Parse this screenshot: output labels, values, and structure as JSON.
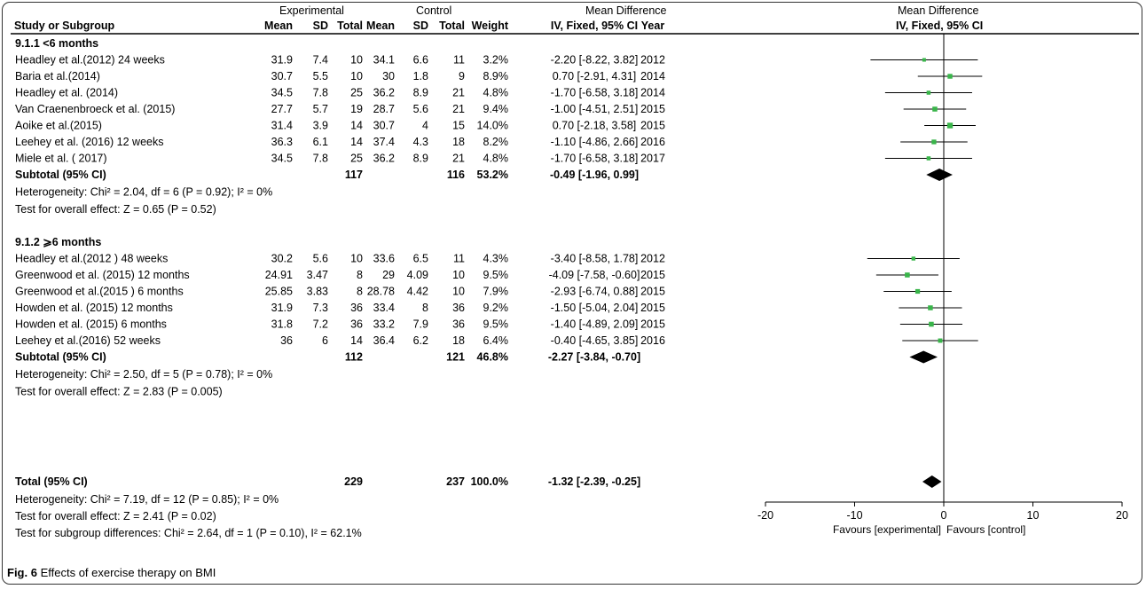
{
  "header": {
    "group_exp": "Experimental",
    "group_ctrl": "Control",
    "group_md": "Mean Difference",
    "group_md_right": "Mean Difference",
    "col_study": "Study or Subgroup",
    "col_mean": "Mean",
    "col_sd": "SD",
    "col_total": "Total",
    "col_weight": "Weight",
    "col_ci": "IV, Fixed, 95% CI",
    "col_year": "Year",
    "col_ci_right": "IV, Fixed, 95% CI"
  },
  "chart_data": {
    "type": "forest",
    "xlim": [
      -20,
      20
    ],
    "ticks": [
      -20,
      -10,
      0,
      10,
      20
    ],
    "tick_labels": [
      "-20",
      "-10",
      "0",
      "10",
      "20"
    ],
    "favours_left": "Favours [experimental]",
    "favours_right": "Favours [control]",
    "subgroups": [
      {
        "title": "9.1.1 <6 months",
        "studies": [
          {
            "name": "Headley et al.(2012)  24 weeks",
            "em": "31.9",
            "esd": "7.4",
            "en": "10",
            "cm": "34.1",
            "csd": "6.6",
            "cn": "11",
            "w": "3.2%",
            "ci": "-2.20 [-8.22, 3.82]",
            "year": "2012",
            "md": -2.2,
            "lo": -8.22,
            "hi": 3.82,
            "weight": 3.2
          },
          {
            "name": "Baria et al.(2014)",
            "em": "30.7",
            "esd": "5.5",
            "en": "10",
            "cm": "30",
            "csd": "1.8",
            "cn": "9",
            "w": "8.9%",
            "ci": "0.70 [-2.91, 4.31]",
            "year": "2014",
            "md": 0.7,
            "lo": -2.91,
            "hi": 4.31,
            "weight": 8.9
          },
          {
            "name": "Headley et al. (2014)",
            "em": "34.5",
            "esd": "7.8",
            "en": "25",
            "cm": "36.2",
            "csd": "8.9",
            "cn": "21",
            "w": "4.8%",
            "ci": "-1.70 [-6.58, 3.18]",
            "year": "2014",
            "md": -1.7,
            "lo": -6.58,
            "hi": 3.18,
            "weight": 4.8
          },
          {
            "name": "Van Craenenbroeck et al. (2015)",
            "em": "27.7",
            "esd": "5.7",
            "en": "19",
            "cm": "28.7",
            "csd": "5.6",
            "cn": "21",
            "w": "9.4%",
            "ci": "-1.00 [-4.51, 2.51]",
            "year": "2015",
            "md": -1.0,
            "lo": -4.51,
            "hi": 2.51,
            "weight": 9.4
          },
          {
            "name": "Aoike et al.(2015)",
            "em": "31.4",
            "esd": "3.9",
            "en": "14",
            "cm": "30.7",
            "csd": "4",
            "cn": "15",
            "w": "14.0%",
            "ci": "0.70 [-2.18, 3.58]",
            "year": "2015",
            "md": 0.7,
            "lo": -2.18,
            "hi": 3.58,
            "weight": 14.0
          },
          {
            "name": "Leehey et al. (2016) 12 weeks",
            "em": "36.3",
            "esd": "6.1",
            "en": "14",
            "cm": "37.4",
            "csd": "4.3",
            "cn": "18",
            "w": "8.2%",
            "ci": "-1.10 [-4.86, 2.66]",
            "year": "2016",
            "md": -1.1,
            "lo": -4.86,
            "hi": 2.66,
            "weight": 8.2
          },
          {
            "name": "Miele et al. ( 2017)",
            "em": "34.5",
            "esd": "7.8",
            "en": "25",
            "cm": "36.2",
            "csd": "8.9",
            "cn": "21",
            "w": "4.8%",
            "ci": "-1.70 [-6.58, 3.18]",
            "year": "2017",
            "md": -1.7,
            "lo": -6.58,
            "hi": 3.18,
            "weight": 4.8
          }
        ],
        "subtotal": {
          "label": "Subtotal (95% CI)",
          "en": "117",
          "cn": "116",
          "w": "53.2%",
          "ci": "-0.49 [-1.96, 0.99]",
          "md": -0.49,
          "lo": -1.96,
          "hi": 0.99
        },
        "heterogeneity": "Heterogeneity: Chi² = 2.04, df = 6 (P = 0.92); I² = 0%",
        "overall": "Test for overall effect: Z = 0.65 (P = 0.52)"
      },
      {
        "title": "9.1.2 ⩾6 months",
        "studies": [
          {
            "name": "Headley et al.(2012 ) 48 weeks",
            "em": "30.2",
            "esd": "5.6",
            "en": "10",
            "cm": "33.6",
            "csd": "6.5",
            "cn": "11",
            "w": "4.3%",
            "ci": "-3.40 [-8.58, 1.78]",
            "year": "2012",
            "md": -3.4,
            "lo": -8.58,
            "hi": 1.78,
            "weight": 4.3
          },
          {
            "name": "Greenwood et al. (2015) 12 months",
            "em": "24.91",
            "esd": "3.47",
            "en": "8",
            "cm": "29",
            "csd": "4.09",
            "cn": "10",
            "w": "9.5%",
            "ci": "-4.09 [-7.58, -0.60]",
            "year": "2015",
            "md": -4.09,
            "lo": -7.58,
            "hi": -0.6,
            "weight": 9.5
          },
          {
            "name": "Greenwood et al.(2015 ) 6 months",
            "em": "25.85",
            "esd": "3.83",
            "en": "8",
            "cm": "28.78",
            "csd": "4.42",
            "cn": "10",
            "w": "7.9%",
            "ci": "-2.93 [-6.74, 0.88]",
            "year": "2015",
            "md": -2.93,
            "lo": -6.74,
            "hi": 0.88,
            "weight": 7.9
          },
          {
            "name": "Howden et al. (2015) 12 months",
            "em": "31.9",
            "esd": "7.3",
            "en": "36",
            "cm": "33.4",
            "csd": "8",
            "cn": "36",
            "w": "9.2%",
            "ci": "-1.50 [-5.04, 2.04]",
            "year": "2015",
            "md": -1.5,
            "lo": -5.04,
            "hi": 2.04,
            "weight": 9.2
          },
          {
            "name": "Howden et al. (2015)  6 months",
            "em": "31.8",
            "esd": "7.2",
            "en": "36",
            "cm": "33.2",
            "csd": "7.9",
            "cn": "36",
            "w": "9.5%",
            "ci": "-1.40 [-4.89, 2.09]",
            "year": "2015",
            "md": -1.4,
            "lo": -4.89,
            "hi": 2.09,
            "weight": 9.5
          },
          {
            "name": "Leehey et al.(2016) 52 weeks",
            "em": "36",
            "esd": "6",
            "en": "14",
            "cm": "36.4",
            "csd": "6.2",
            "cn": "18",
            "w": "6.4%",
            "ci": "-0.40 [-4.65, 3.85]",
            "year": "2016",
            "md": -0.4,
            "lo": -4.65,
            "hi": 3.85,
            "weight": 6.4
          }
        ],
        "subtotal": {
          "label": "Subtotal (95% CI)",
          "en": "112",
          "cn": "121",
          "w": "46.8%",
          "ci": "-2.27 [-3.84, -0.70]",
          "md": -2.27,
          "lo": -3.84,
          "hi": -0.7
        },
        "heterogeneity": "Heterogeneity: Chi² = 2.50, df = 5 (P = 0.78); I² = 0%",
        "overall": "Test for overall effect: Z = 2.83 (P = 0.005)"
      }
    ],
    "total": {
      "label": "Total (95% CI)",
      "en": "229",
      "cn": "237",
      "w": "100.0%",
      "ci": "-1.32 [-2.39, -0.25]",
      "md": -1.32,
      "lo": -2.39,
      "hi": -0.25
    },
    "total_heterogeneity": "Heterogeneity: Chi² = 7.19, df = 12 (P = 0.85); I² = 0%",
    "total_overall": "Test for overall effect: Z = 2.41 (P = 0.02)",
    "subgroup_diff": "Test for subgroup differences: Chi² = 2.64, df = 1 (P = 0.10), I² = 62.1%",
    "colors": {
      "point": "#39b54a",
      "line": "#000000",
      "diamond": "#000000"
    }
  },
  "caption": {
    "fig": "Fig. 6",
    "text": "Effects of exercise therapy on BMI"
  }
}
